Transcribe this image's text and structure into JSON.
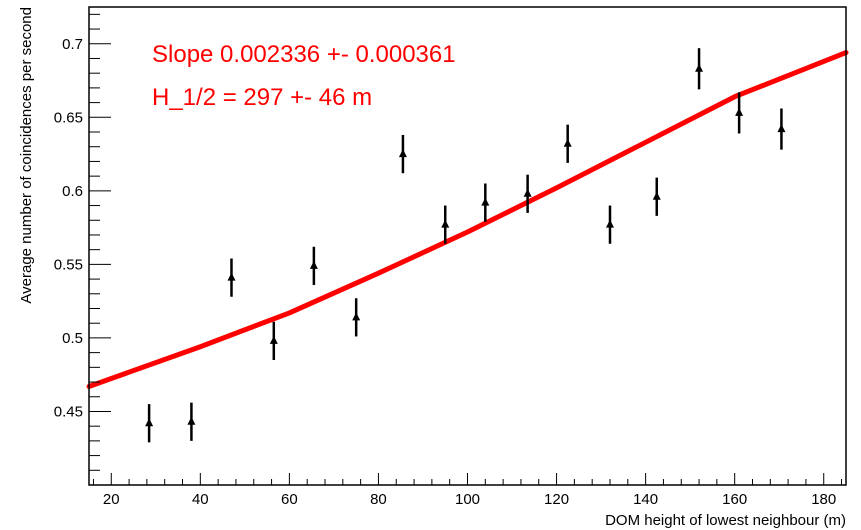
{
  "chart_data": {
    "type": "scatter",
    "title": "",
    "xlabel": "DOM height of lowest neighbour (m)",
    "ylabel": "Average number of coincidences per second",
    "xlim": [
      15,
      185
    ],
    "ylim": [
      0.4,
      0.725
    ],
    "x_ticks": [
      20,
      40,
      60,
      80,
      100,
      120,
      140,
      160,
      180
    ],
    "y_ticks": [
      0.45,
      0.5,
      0.55,
      0.6,
      0.65,
      0.7
    ],
    "grid": false,
    "marker_color": "#000000",
    "fit_color": "#ff0000",
    "points": [
      {
        "x": 28.5,
        "y": 0.442,
        "err": 0.013
      },
      {
        "x": 38.0,
        "y": 0.443,
        "err": 0.013
      },
      {
        "x": 47.0,
        "y": 0.541,
        "err": 0.013
      },
      {
        "x": 56.5,
        "y": 0.498,
        "err": 0.013
      },
      {
        "x": 65.5,
        "y": 0.549,
        "err": 0.013
      },
      {
        "x": 75.0,
        "y": 0.514,
        "err": 0.013
      },
      {
        "x": 85.5,
        "y": 0.625,
        "err": 0.013
      },
      {
        "x": 95.0,
        "y": 0.577,
        "err": 0.013
      },
      {
        "x": 104.0,
        "y": 0.592,
        "err": 0.013
      },
      {
        "x": 113.5,
        "y": 0.598,
        "err": 0.013
      },
      {
        "x": 122.5,
        "y": 0.632,
        "err": 0.013
      },
      {
        "x": 132.0,
        "y": 0.577,
        "err": 0.013
      },
      {
        "x": 142.5,
        "y": 0.596,
        "err": 0.013
      },
      {
        "x": 152.0,
        "y": 0.683,
        "err": 0.014
      },
      {
        "x": 161.0,
        "y": 0.653,
        "err": 0.014
      },
      {
        "x": 170.5,
        "y": 0.642,
        "err": 0.014
      }
    ],
    "fit": {
      "x": [
        15,
        40,
        60,
        80,
        100,
        120,
        140,
        160,
        185
      ],
      "y": [
        0.467,
        0.494,
        0.517,
        0.544,
        0.572,
        0.602,
        0.633,
        0.664,
        0.694
      ]
    },
    "annotations": [
      "Slope 0.002336 +- 0.000361",
      "H_1/2 = 297 +- 46 m"
    ]
  }
}
